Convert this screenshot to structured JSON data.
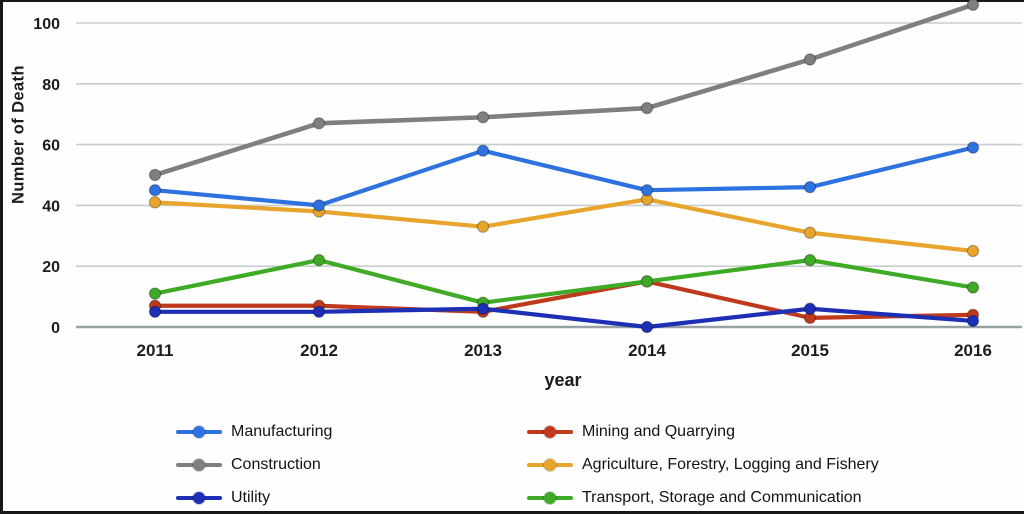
{
  "chart_data": {
    "type": "line",
    "title": "",
    "xlabel": "year",
    "ylabel": "Number of Death",
    "categories": [
      "2011",
      "2012",
      "2013",
      "2014",
      "2015",
      "2016"
    ],
    "y_ticks": [
      0,
      20,
      40,
      60,
      80,
      100
    ],
    "ylim": [
      0,
      100
    ],
    "grid": true,
    "legend_position": "bottom-two-columns",
    "marker": "circle",
    "series": [
      {
        "name": "Manufacturing",
        "color": "#2D72DE",
        "values": [
          45,
          40,
          58,
          45,
          46,
          59
        ]
      },
      {
        "name": "Mining and Quarrying",
        "color": "#BF3A1D",
        "values": [
          7,
          7,
          5,
          15,
          3,
          4
        ]
      },
      {
        "name": "Construction",
        "color": "#7F7F7F",
        "values": [
          50,
          67,
          69,
          72,
          88,
          106
        ]
      },
      {
        "name": "Agriculture, Forestry, Logging and Fishery",
        "color": "#E8A52E",
        "values": [
          41,
          38,
          33,
          42,
          31,
          25
        ]
      },
      {
        "name": "Utility",
        "color": "#1D2FB4",
        "values": [
          5,
          5,
          6,
          0,
          6,
          2
        ]
      },
      {
        "name": "Transport, Storage and Communication",
        "color": "#3FAA26",
        "values": [
          11,
          22,
          8,
          15,
          22,
          13
        ]
      }
    ],
    "colors": {
      "gridline": "#c7cecd",
      "axis_line": "#98a2a2",
      "text": "#1d1d1d",
      "frame_border": "#181818"
    }
  }
}
